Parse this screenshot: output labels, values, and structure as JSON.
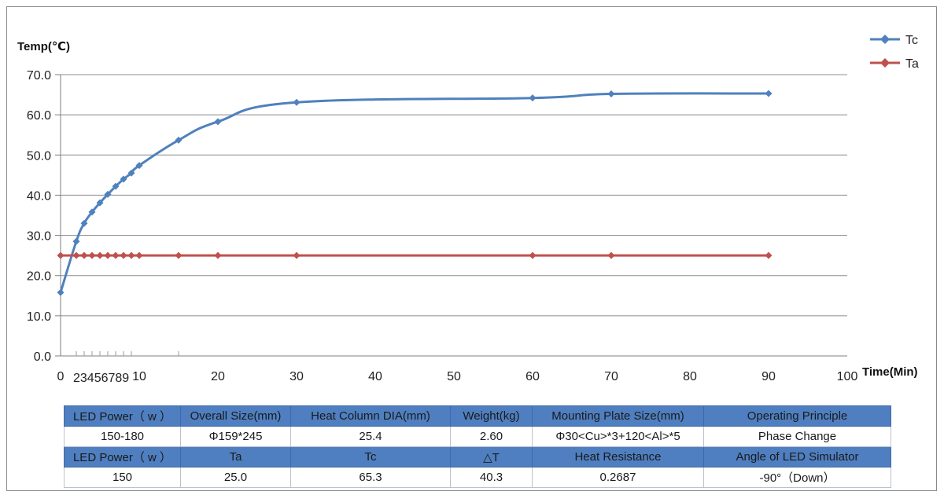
{
  "chart_data": {
    "type": "line",
    "ylabel": "Temp(℃)",
    "xlabel": "Time(Min)",
    "ylim": [
      0,
      70
    ],
    "xlim": [
      0,
      100
    ],
    "y_ticks": [
      "0.0",
      "10.0",
      "20.0",
      "30.0",
      "40.0",
      "50.0",
      "60.0",
      "70.0"
    ],
    "x_ticks": [
      "0",
      "10",
      "20",
      "30",
      "40",
      "50",
      "60",
      "70",
      "80",
      "90",
      "100"
    ],
    "x_extra_tick_label": "23456789",
    "grid": "horizontal",
    "legend_position": "top-right",
    "series": [
      {
        "name": "Tc",
        "color": "#4f81bd",
        "marker": "diamond",
        "points": [
          [
            0,
            15.8
          ],
          [
            2,
            28.5
          ],
          [
            3,
            33.0
          ],
          [
            4,
            35.8
          ],
          [
            5,
            38.1
          ],
          [
            6,
            40.2
          ],
          [
            7,
            42.2
          ],
          [
            8,
            44.0
          ],
          [
            9,
            45.5
          ],
          [
            10,
            47.4
          ],
          [
            15,
            53.7
          ],
          [
            20,
            58.3
          ],
          [
            30,
            63.1
          ],
          [
            60,
            64.2
          ],
          [
            70,
            65.2
          ],
          [
            90,
            65.3
          ]
        ]
      },
      {
        "name": "Ta",
        "color": "#c0504d",
        "marker": "diamond",
        "points": [
          [
            0,
            25.0
          ],
          [
            2,
            25.0
          ],
          [
            3,
            25.0
          ],
          [
            4,
            25.0
          ],
          [
            5,
            25.0
          ],
          [
            6,
            25.0
          ],
          [
            7,
            25.0
          ],
          [
            8,
            25.0
          ],
          [
            9,
            25.0
          ],
          [
            10,
            25.0
          ],
          [
            15,
            25.0
          ],
          [
            20,
            25.0
          ],
          [
            30,
            25.0
          ],
          [
            60,
            25.0
          ],
          [
            70,
            25.0
          ],
          [
            90,
            25.0
          ]
        ]
      }
    ]
  },
  "table": {
    "header_color": "#4f7fc0",
    "rows": [
      {
        "kind": "hdr",
        "cells": [
          "LED Power（ w ）",
          "Overall Size(mm)",
          "Heat Column DIA(mm)",
          "Weight(kg)",
          "Mounting Plate Size(mm)",
          "Operating Principle"
        ]
      },
      {
        "kind": "val",
        "cells": [
          "150-180",
          "Φ159*245",
          "25.4",
          "2.60",
          "Φ30<Cu>*3+120<Al>*5",
          "Phase Change"
        ]
      },
      {
        "kind": "hdr",
        "cells": [
          "LED Power（ w ）",
          "Ta",
          "Tc",
          "△T",
          "Heat Resistance",
          "Angle of LED Simulator"
        ]
      },
      {
        "kind": "val",
        "cells": [
          "150",
          "25.0",
          "65.3",
          "40.3",
          "0.2687",
          "-90°（Down）"
        ]
      }
    ]
  }
}
